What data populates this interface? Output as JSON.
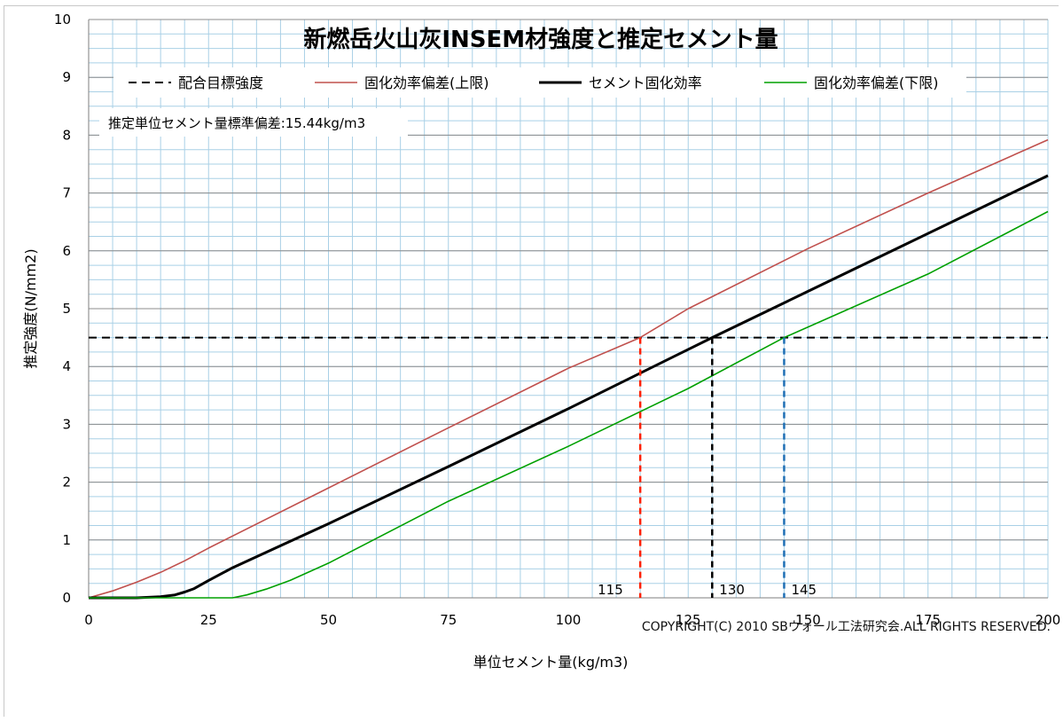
{
  "chart_data": {
    "type": "line",
    "title": "新燃岳火山灰INSEM材強度と推定セメント量",
    "xlabel": "単位セメント量(kg/m3)",
    "ylabel": "推定強度(N/mm2)",
    "xlim": [
      0,
      200
    ],
    "ylim": [
      0,
      10
    ],
    "x_ticks": [
      "0",
      "25",
      "50",
      "75",
      "100",
      "125",
      "150",
      "175",
      "200"
    ],
    "y_ticks": [
      "0",
      "1",
      "2",
      "3",
      "4",
      "5",
      "6",
      "7",
      "8",
      "9",
      "10"
    ],
    "grid": true,
    "legend_position": "top",
    "series": [
      {
        "name": "配合目標強度",
        "color": "#000000",
        "style": "dashed",
        "points": [
          [
            0,
            4.5
          ],
          [
            200,
            4.5
          ]
        ]
      },
      {
        "name": "固化効率偏差(上限)",
        "color": "#c0504d",
        "style": "solid",
        "points": [
          [
            0,
            0
          ],
          [
            5,
            0.12
          ],
          [
            10,
            0.27
          ],
          [
            15,
            0.44
          ],
          [
            20,
            0.64
          ],
          [
            25,
            0.86
          ],
          [
            50,
            1.9
          ],
          [
            75,
            2.94
          ],
          [
            100,
            3.97
          ],
          [
            115,
            4.5
          ],
          [
            125,
            5.0
          ],
          [
            150,
            6.04
          ],
          [
            175,
            7.0
          ],
          [
            200,
            7.92
          ]
        ]
      },
      {
        "name": "セメント固化効率",
        "color": "#000000",
        "style": "solid",
        "points": [
          [
            0,
            0
          ],
          [
            10,
            0.0
          ],
          [
            15,
            0.02
          ],
          [
            18,
            0.05
          ],
          [
            20,
            0.1
          ],
          [
            22,
            0.16
          ],
          [
            25,
            0.3
          ],
          [
            30,
            0.52
          ],
          [
            40,
            0.9
          ],
          [
            50,
            1.28
          ],
          [
            75,
            2.27
          ],
          [
            100,
            3.27
          ],
          [
            130,
            4.5
          ],
          [
            150,
            5.3
          ],
          [
            175,
            6.3
          ],
          [
            200,
            7.3
          ]
        ]
      },
      {
        "name": "固化効率偏差(下限)",
        "color": "#00a000",
        "style": "solid",
        "points": [
          [
            0,
            0
          ],
          [
            30,
            0
          ],
          [
            33,
            0.05
          ],
          [
            37,
            0.15
          ],
          [
            42,
            0.3
          ],
          [
            50,
            0.6
          ],
          [
            75,
            1.67
          ],
          [
            100,
            2.62
          ],
          [
            125,
            3.62
          ],
          [
            145,
            4.5
          ],
          [
            175,
            5.6
          ],
          [
            200,
            6.68
          ]
        ]
      }
    ],
    "annotations": {
      "stddev_text": "推定単位セメント量標準偏差:15.44kg/m3",
      "markers": [
        {
          "x": 115,
          "label": "115",
          "color": "#ff2000"
        },
        {
          "x": 130,
          "label": "130",
          "color": "#000000"
        },
        {
          "x": 145,
          "label": "145",
          "color": "#1f6fb5"
        }
      ]
    }
  },
  "footer": {
    "copyright": "COPYRIGHT(C) 2010 SBウォール工法研究会.ALL RIGHTS RESERVED."
  }
}
